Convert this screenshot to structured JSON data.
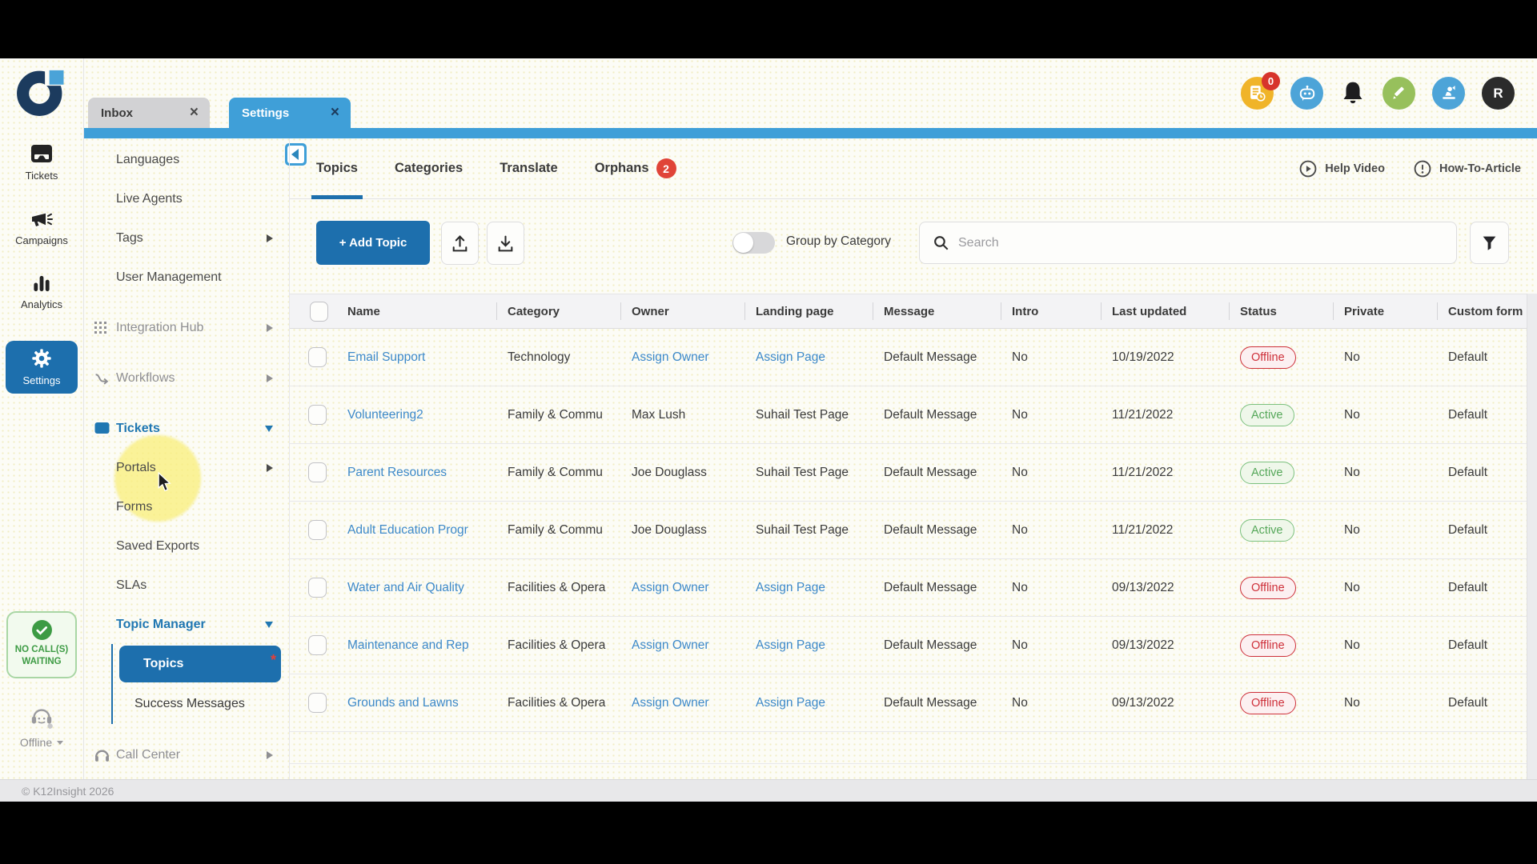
{
  "colors": {
    "accent_blue": "#1d6fad",
    "bar_blue": "#3f9fd8",
    "active_green": "#55a759",
    "offline_red": "#ce2f39",
    "highlight_yellow": "#f8ee7d"
  },
  "window": {
    "tabs": [
      {
        "label": "Inbox",
        "active": false
      },
      {
        "label": "Settings",
        "active": true
      }
    ],
    "close_glyph": "×"
  },
  "topbar": {
    "badge_count": "0",
    "avatar_initial": "R"
  },
  "nav_rail": {
    "items": [
      {
        "label": "Tickets"
      },
      {
        "label": "Campaigns"
      },
      {
        "label": "Analytics"
      },
      {
        "label": "Settings",
        "active": true
      }
    ],
    "call_status": {
      "line1": "NO CALL(S)",
      "line2": "WAITING"
    },
    "agent_status": {
      "label": "Offline"
    }
  },
  "sidebar": {
    "items": [
      {
        "label": "Languages",
        "tone": "normal"
      },
      {
        "label": "Live Agents",
        "tone": "normal"
      },
      {
        "label": "Tags",
        "tone": "normal",
        "arrow": "right"
      },
      {
        "label": "User Management",
        "tone": "normal"
      },
      {
        "label": "Integration Hub",
        "tone": "muted",
        "icon": "grid",
        "arrow": "right",
        "gap": true
      },
      {
        "label": "Workflows",
        "tone": "muted",
        "icon": "workflow",
        "arrow": "right",
        "gap": true
      },
      {
        "label": "Tickets",
        "tone": "blue",
        "icon": "ticket",
        "arrow": "down",
        "gap": true
      },
      {
        "label": "Portals",
        "tone": "normal",
        "arrow": "right"
      },
      {
        "label": "Forms",
        "tone": "normal"
      },
      {
        "label": "Saved Exports",
        "tone": "normal"
      },
      {
        "label": "SLAs",
        "tone": "normal"
      },
      {
        "label": "Topic Manager",
        "tone": "blue",
        "arrow": "down"
      },
      {
        "label": "Topics",
        "sub": true,
        "active": true,
        "marker": "*"
      },
      {
        "label": "Success Messages",
        "sub": true
      },
      {
        "label": "Call Center",
        "tone": "muted",
        "icon": "headset",
        "arrow": "right",
        "gap": true
      }
    ]
  },
  "main": {
    "tabs": [
      {
        "label": "Topics",
        "active": true
      },
      {
        "label": "Categories"
      },
      {
        "label": "Translate"
      },
      {
        "label": "Orphans",
        "badge": "2"
      }
    ],
    "links": {
      "help_video": "Help Video",
      "how_to_article": "How-To-Article"
    },
    "toolbar": {
      "add_topic_label": "+ Add Topic",
      "group_by_label": "Group by Category",
      "group_by_on": false,
      "search_placeholder": "Search"
    },
    "table": {
      "columns": [
        "Name",
        "Category",
        "Owner",
        "Landing page",
        "Message",
        "Intro",
        "Last updated",
        "Status",
        "Private",
        "Custom form"
      ],
      "rows": [
        {
          "name": "Email Support",
          "category": "Technology",
          "owner": "Assign Owner",
          "owner_link": true,
          "landing_page": "Assign Page",
          "landing_link": true,
          "message": "Default Message",
          "intro": "No",
          "last_updated": "10/19/2022",
          "status": "Offline",
          "private": "No",
          "custom_form": "Default"
        },
        {
          "name": "Volunteering2",
          "category": "Family & Commu",
          "owner": "Max Lush",
          "owner_link": false,
          "landing_page": "Suhail Test Page",
          "landing_link": false,
          "message": "Default Message",
          "intro": "No",
          "last_updated": "11/21/2022",
          "status": "Active",
          "private": "No",
          "custom_form": "Default"
        },
        {
          "name": "Parent Resources",
          "category": "Family & Commu",
          "owner": "Joe Douglass",
          "owner_link": false,
          "landing_page": "Suhail Test Page",
          "landing_link": false,
          "message": "Default Message",
          "intro": "No",
          "last_updated": "11/21/2022",
          "status": "Active",
          "private": "No",
          "custom_form": "Default"
        },
        {
          "name": "Adult Education Progr",
          "category": "Family & Commu",
          "owner": "Joe Douglass",
          "owner_link": false,
          "landing_page": "Suhail Test Page",
          "landing_link": false,
          "message": "Default Message",
          "intro": "No",
          "last_updated": "11/21/2022",
          "status": "Active",
          "private": "No",
          "custom_form": "Default"
        },
        {
          "name": "Water and Air Quality",
          "category": "Facilities & Opera",
          "owner": "Assign Owner",
          "owner_link": true,
          "landing_page": "Assign Page",
          "landing_link": true,
          "message": "Default Message",
          "intro": "No",
          "last_updated": "09/13/2022",
          "status": "Offline",
          "private": "No",
          "custom_form": "Default"
        },
        {
          "name": "Maintenance and Rep",
          "category": "Facilities & Opera",
          "owner": "Assign Owner",
          "owner_link": true,
          "landing_page": "Assign Page",
          "landing_link": true,
          "message": "Default Message",
          "intro": "No",
          "last_updated": "09/13/2022",
          "status": "Offline",
          "private": "No",
          "custom_form": "Default"
        },
        {
          "name": "Grounds and Lawns",
          "category": "Facilities & Opera",
          "owner": "Assign Owner",
          "owner_link": true,
          "landing_page": "Assign Page",
          "landing_link": true,
          "message": "Default Message",
          "intro": "No",
          "last_updated": "09/13/2022",
          "status": "Offline",
          "private": "No",
          "custom_form": "Default"
        }
      ]
    }
  },
  "footer": {
    "copyright": "© K12Insight 2026"
  }
}
